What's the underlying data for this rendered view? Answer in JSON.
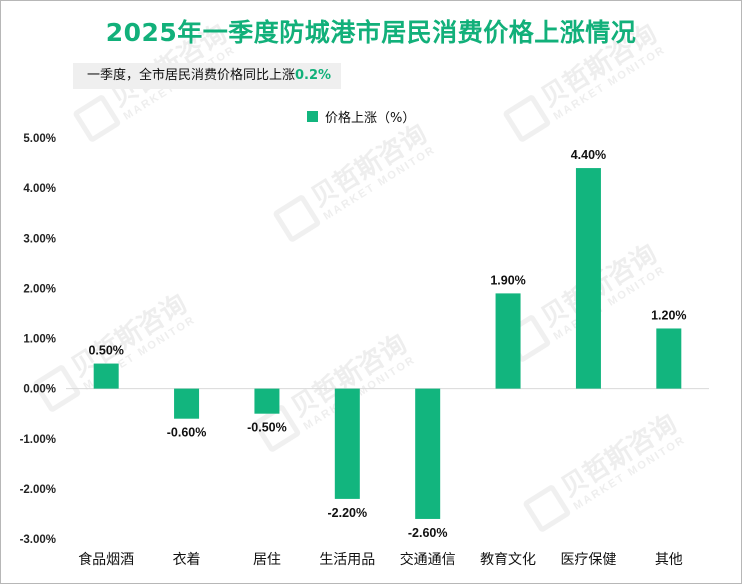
{
  "title": "2025年一季度防城港市居民消费价格上涨情况",
  "note": {
    "text": "一季度，全市居民消费价格同比上涨",
    "value": "0.2%"
  },
  "watermark": {
    "brand": "贝哲斯咨询",
    "sub": "MARKET MONITOR"
  },
  "colors": {
    "bar": "#12b57e",
    "title": "#12b07a",
    "axis": "#d9d9d9"
  },
  "chart_data": {
    "type": "bar",
    "categories": [
      "食品烟酒",
      "衣着",
      "居住",
      "生活用品",
      "交通通信",
      "教育文化",
      "医疗保健",
      "其他"
    ],
    "series": [
      {
        "name": "价格上涨（%）",
        "values": [
          0.5,
          -0.6,
          -0.5,
          -2.2,
          -2.6,
          1.9,
          4.4,
          1.2
        ]
      }
    ],
    "data_labels": [
      "0.50%",
      "-0.60%",
      "-0.50%",
      "-2.20%",
      "-2.60%",
      "1.90%",
      "4.40%",
      "1.20%"
    ],
    "yticks": [
      "5.00%",
      "4.00%",
      "3.00%",
      "2.00%",
      "1.00%",
      "0.00%",
      "-1.00%",
      "-2.00%",
      "-3.00%"
    ],
    "ylim": [
      -3,
      5
    ],
    "legend": "top-center",
    "grid": false
  }
}
